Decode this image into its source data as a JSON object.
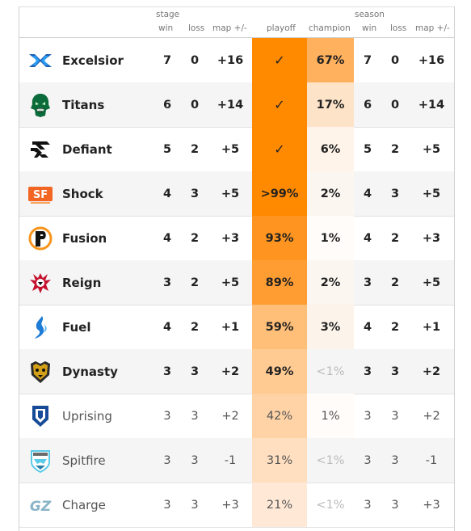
{
  "header": {
    "stage_label": "stage",
    "season_label": "season",
    "col_win": "win",
    "col_loss": "loss",
    "col_map": "map +/-",
    "col_playoff": "playoff",
    "col_champion": "champion",
    "col_season_win": "win",
    "col_season_loss": "loss",
    "col_season_map": "map +/-"
  },
  "colors": {
    "playoff_full": "#ff8a00",
    "champion_high": "#ffb15e",
    "row_shade": "#f5f5f5"
  },
  "teams": [
    {
      "name": "Excelsior",
      "icon": "excelsior-logo",
      "win": "7",
      "loss": "0",
      "map": "+16",
      "playoff": "✓",
      "champion": "67%",
      "s_win": "7",
      "s_loss": "0",
      "s_map": "+16",
      "bold": true,
      "playoff_bg": "#ff8a00",
      "champ_bg": "#ffb15e",
      "champ_gray": false
    },
    {
      "name": "Titans",
      "icon": "titans-logo",
      "win": "6",
      "loss": "0",
      "map": "+14",
      "playoff": "✓",
      "champion": "17%",
      "s_win": "6",
      "s_loss": "0",
      "s_map": "+14",
      "bold": true,
      "playoff_bg": "#ff8a00",
      "champ_bg": "#fde3c8",
      "champ_gray": false
    },
    {
      "name": "Defiant",
      "icon": "defiant-logo",
      "win": "5",
      "loss": "2",
      "map": "+5",
      "playoff": "✓",
      "champion": "6%",
      "s_win": "5",
      "s_loss": "2",
      "s_map": "+5",
      "bold": true,
      "playoff_bg": "#ff8a00",
      "champ_bg": "#fff4ea",
      "champ_gray": false
    },
    {
      "name": "Shock",
      "icon": "shock-logo",
      "win": "4",
      "loss": "3",
      "map": "+5",
      "playoff": ">99%",
      "champion": "2%",
      "s_win": "4",
      "s_loss": "3",
      "s_map": "+5",
      "bold": true,
      "playoff_bg": "#ff8a00",
      "champ_bg": "#fcf6f1",
      "champ_gray": false
    },
    {
      "name": "Fusion",
      "icon": "fusion-logo",
      "win": "4",
      "loss": "2",
      "map": "+3",
      "playoff": "93%",
      "champion": "1%",
      "s_win": "4",
      "s_loss": "2",
      "s_map": "+3",
      "bold": true,
      "playoff_bg": "#ff9520",
      "champ_bg": "#fffcf9",
      "champ_gray": false
    },
    {
      "name": "Reign",
      "icon": "reign-logo",
      "win": "3",
      "loss": "2",
      "map": "+5",
      "playoff": "89%",
      "champion": "2%",
      "s_win": "3",
      "s_loss": "2",
      "s_map": "+5",
      "bold": true,
      "playoff_bg": "#ff9d32",
      "champ_bg": "#fcf6f1",
      "champ_gray": false
    },
    {
      "name": "Fuel",
      "icon": "fuel-logo",
      "win": "4",
      "loss": "2",
      "map": "+1",
      "playoff": "59%",
      "champion": "3%",
      "s_win": "4",
      "s_loss": "2",
      "s_map": "+1",
      "bold": true,
      "playoff_bg": "#ffbf78",
      "champ_bg": "#fcf3ea",
      "champ_gray": false
    },
    {
      "name": "Dynasty",
      "icon": "dynasty-logo",
      "win": "3",
      "loss": "3",
      "map": "+2",
      "playoff": "49%",
      "champion": "<1%",
      "s_win": "3",
      "s_loss": "3",
      "s_map": "+2",
      "bold": true,
      "playoff_bg": "#ffcb92",
      "champ_bg": "",
      "champ_gray": true
    },
    {
      "name": "Uprising",
      "icon": "uprising-logo",
      "win": "3",
      "loss": "3",
      "map": "+2",
      "playoff": "42%",
      "champion": "1%",
      "s_win": "3",
      "s_loss": "3",
      "s_map": "+2",
      "bold": false,
      "playoff_bg": "#ffd3a6",
      "champ_bg": "#fffcf9",
      "champ_gray": false
    },
    {
      "name": "Spitfire",
      "icon": "spitfire-logo",
      "win": "3",
      "loss": "3",
      "map": "-1",
      "playoff": "31%",
      "champion": "<1%",
      "s_win": "3",
      "s_loss": "3",
      "s_map": "-1",
      "bold": false,
      "playoff_bg": "#ffdfc0",
      "champ_bg": "",
      "champ_gray": true
    },
    {
      "name": "Charge",
      "icon": "charge-logo",
      "win": "3",
      "loss": "3",
      "map": "+3",
      "playoff": "21%",
      "champion": "<1%",
      "s_win": "3",
      "s_loss": "3",
      "s_map": "+3",
      "bold": false,
      "playoff_bg": "#ffe9d6",
      "champ_bg": "",
      "champ_gray": true
    }
  ]
}
